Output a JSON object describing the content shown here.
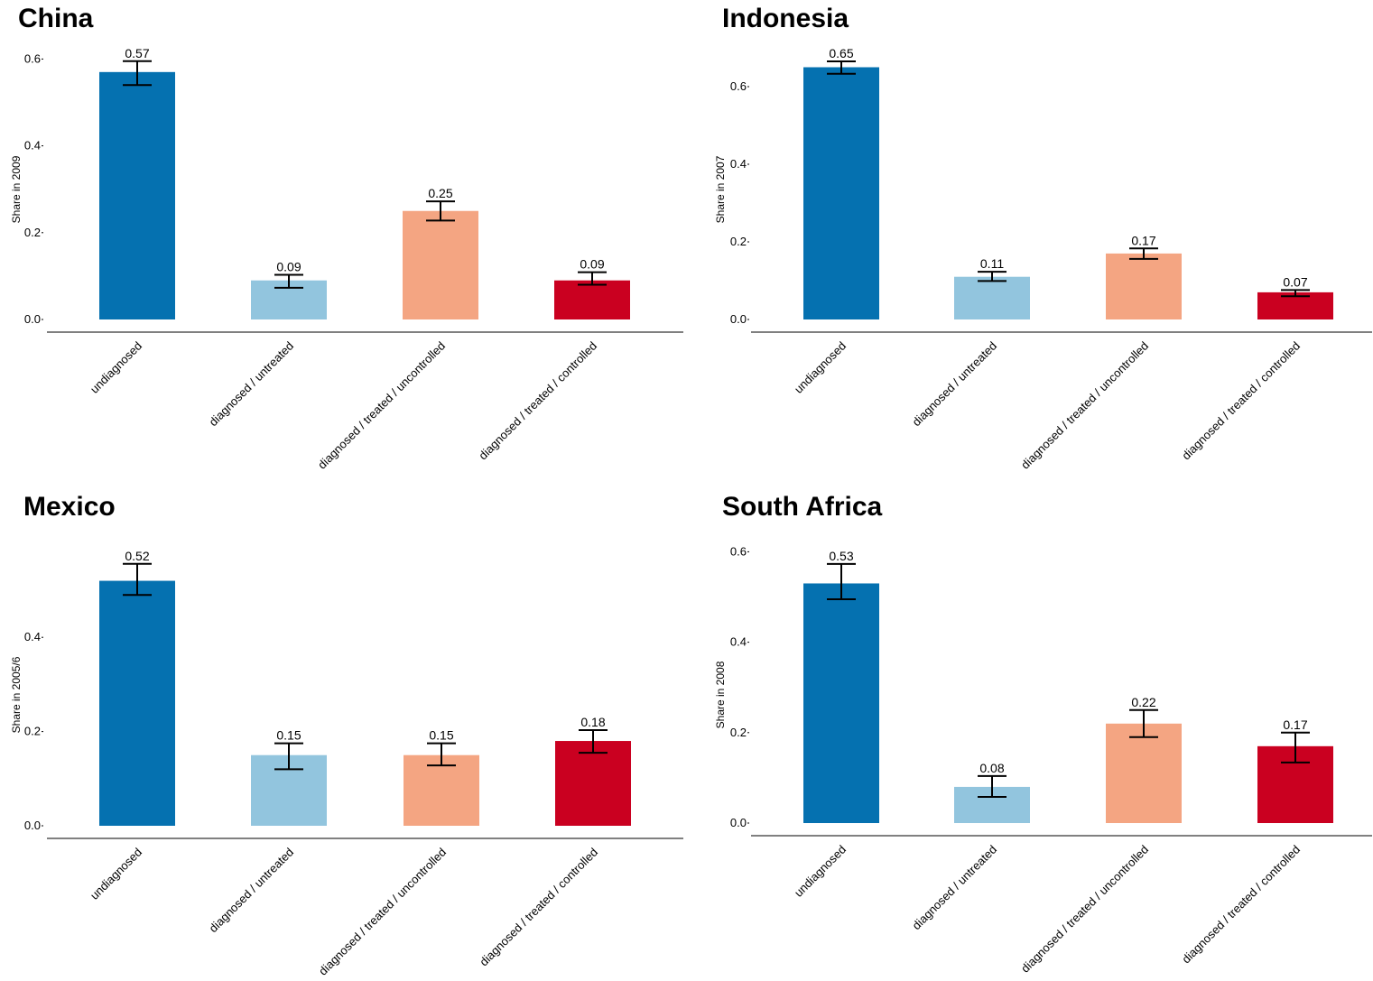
{
  "chart_data": [
    {
      "type": "bar",
      "title": "China",
      "ylabel": "Share in 2009",
      "ylim": [
        0,
        0.6
      ],
      "yticks": [
        "0.0",
        "0.2",
        "0.4",
        "0.6"
      ],
      "categories": [
        "undiagnosed",
        "diagnosed / untreated",
        "diagnosed / treated / uncontrolled",
        "diagnosed / treated / controlled"
      ],
      "values": [
        0.57,
        0.09,
        0.25,
        0.09
      ],
      "data_labels": [
        "0.57",
        "0.09",
        "0.25",
        "0.09"
      ],
      "error_low": [
        0.54,
        0.073,
        0.228,
        0.08
      ],
      "error_high": [
        0.595,
        0.103,
        0.272,
        0.109
      ],
      "colors": [
        "#0571b0",
        "#92c5de",
        "#f4a582",
        "#ca0020"
      ]
    },
    {
      "type": "bar",
      "title": "Indonesia",
      "ylabel": "Share in 2007",
      "ylim": [
        0,
        0.6
      ],
      "yticks": [
        "0.0",
        "0.2",
        "0.4",
        "0.6"
      ],
      "categories": [
        "undiagnosed",
        "diagnosed / untreated",
        "diagnosed / treated / uncontrolled",
        "diagnosed / treated / controlled"
      ],
      "values": [
        0.65,
        0.11,
        0.17,
        0.07
      ],
      "data_labels": [
        "0.65",
        "0.11",
        "0.17",
        "0.07"
      ],
      "error_low": [
        0.633,
        0.099,
        0.156,
        0.06
      ],
      "error_high": [
        0.665,
        0.123,
        0.183,
        0.076
      ],
      "colors": [
        "#0571b0",
        "#92c5de",
        "#f4a582",
        "#ca0020"
      ]
    },
    {
      "type": "bar",
      "title": "Mexico",
      "ylabel": "Share in 2005/6",
      "ylim": [
        0,
        0.4
      ],
      "yticks": [
        "0.0",
        "0.2",
        "0.4"
      ],
      "categories": [
        "undiagnosed",
        "diagnosed / untreated",
        "diagnosed / treated / uncontrolled",
        "diagnosed / treated / controlled"
      ],
      "values": [
        0.52,
        0.15,
        0.15,
        0.18
      ],
      "data_labels": [
        "0.52",
        "0.15",
        "0.15",
        "0.18"
      ],
      "error_low": [
        0.49,
        0.12,
        0.128,
        0.155
      ],
      "error_high": [
        0.556,
        0.175,
        0.175,
        0.203
      ],
      "colors": [
        "#0571b0",
        "#92c5de",
        "#f4a582",
        "#ca0020"
      ]
    },
    {
      "type": "bar",
      "title": "South Africa",
      "ylabel": "Share in 2008",
      "ylim": [
        0,
        0.6
      ],
      "yticks": [
        "0.0",
        "0.2",
        "0.4",
        "0.6"
      ],
      "categories": [
        "undiagnosed",
        "diagnosed / untreated",
        "diagnosed / treated / uncontrolled",
        "diagnosed / treated / controlled"
      ],
      "values": [
        0.53,
        0.08,
        0.22,
        0.17
      ],
      "data_labels": [
        "0.53",
        "0.08",
        "0.22",
        "0.17"
      ],
      "error_low": [
        0.495,
        0.058,
        0.19,
        0.134
      ],
      "error_high": [
        0.573,
        0.104,
        0.25,
        0.2
      ],
      "colors": [
        "#0571b0",
        "#92c5de",
        "#f4a582",
        "#ca0020"
      ]
    }
  ]
}
